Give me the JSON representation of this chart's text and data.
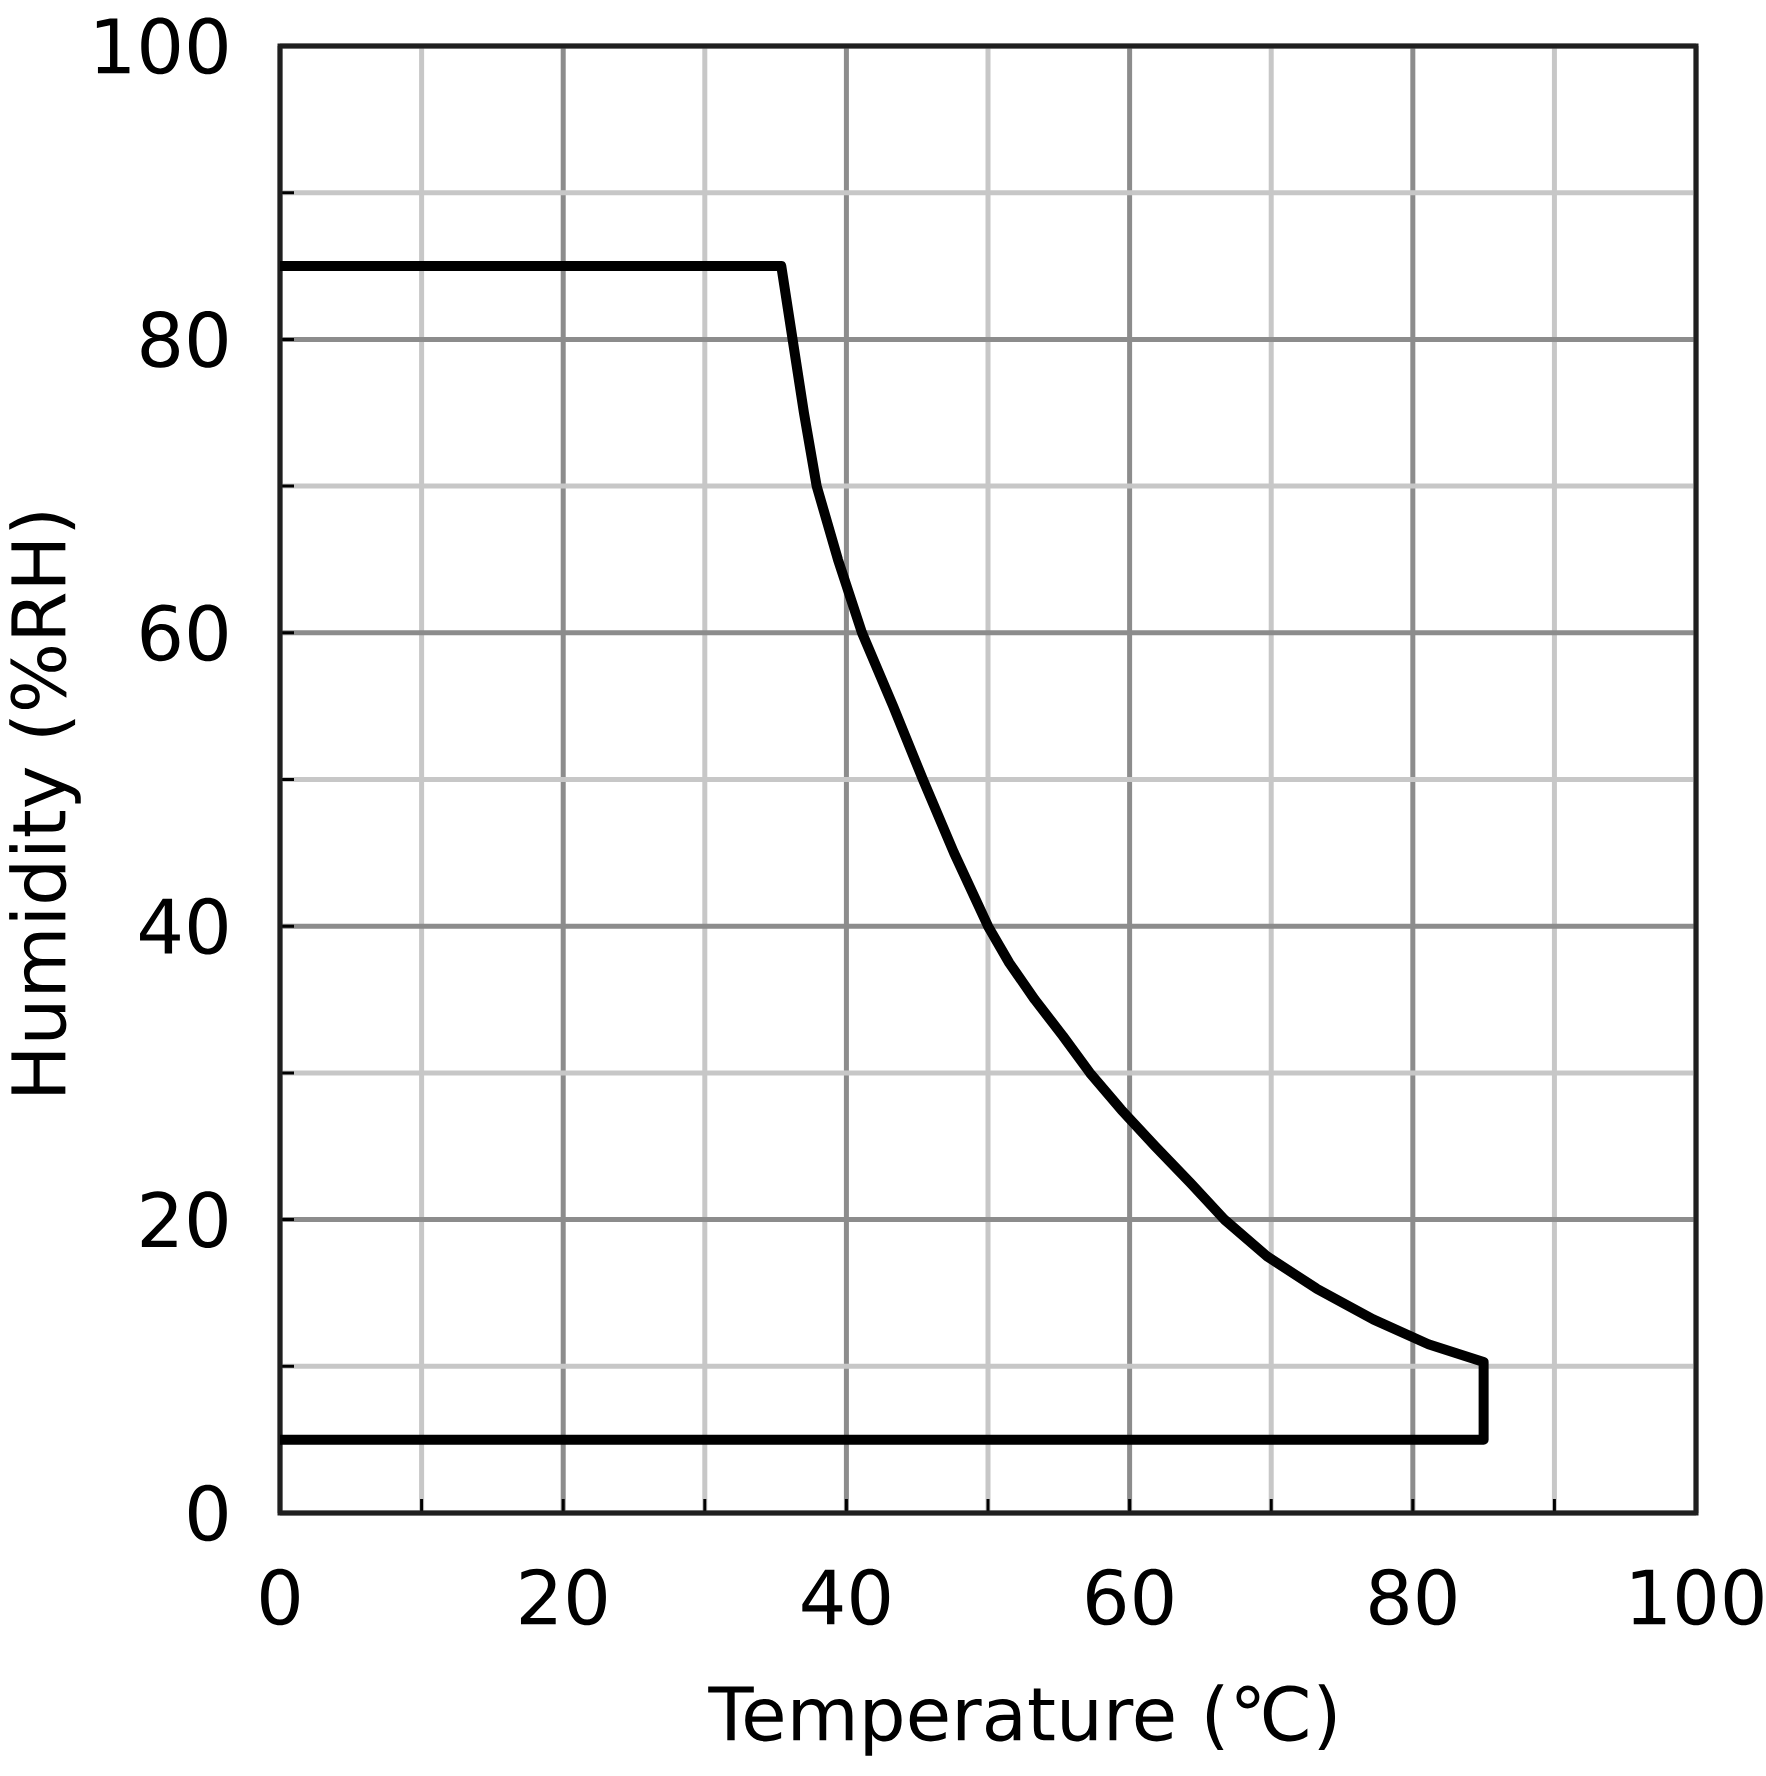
{
  "chart_data": {
    "type": "line",
    "xlabel": "Temperature (℃)",
    "ylabel": "Humidity (%RH)",
    "x": [
      0,
      35.4,
      36.2,
      37,
      37.9,
      39.4,
      41.1,
      43.3,
      45.4,
      47.6,
      50,
      51.5,
      53.3,
      55.3,
      57.2,
      59.4,
      61.8,
      64.3,
      66.7,
      69.7,
      73.2,
      77.2,
      81.1,
      85,
      85,
      0
    ],
    "series": [
      {
        "color": "#000000",
        "values": [
          85,
          85,
          80,
          75,
          70,
          65,
          60,
          55,
          50,
          45,
          40,
          37.5,
          35,
          32.5,
          30,
          27.5,
          25,
          22.5,
          20,
          17.5,
          15.3,
          13.2,
          11.5,
          10.3,
          5,
          5
        ]
      }
    ],
    "xlim": [
      0,
      100
    ],
    "ylim": [
      0,
      100
    ],
    "xticks": [
      0,
      {
        "value": 10,
        "label": null
      },
      20,
      {
        "value": 30,
        "label": null
      },
      40,
      {
        "value": 50,
        "label": null
      },
      60,
      {
        "value": 70,
        "label": null
      },
      80,
      {
        "value": 90,
        "label": null
      },
      100
    ],
    "yticks": [
      0,
      {
        "value": 10,
        "label": null
      },
      20,
      {
        "value": 30,
        "label": null
      },
      40,
      {
        "value": 50,
        "label": null
      },
      60,
      {
        "value": 70,
        "label": null
      },
      80,
      {
        "value": 90,
        "label": null
      },
      100
    ],
    "grid": true,
    "line_style": "solid"
  }
}
